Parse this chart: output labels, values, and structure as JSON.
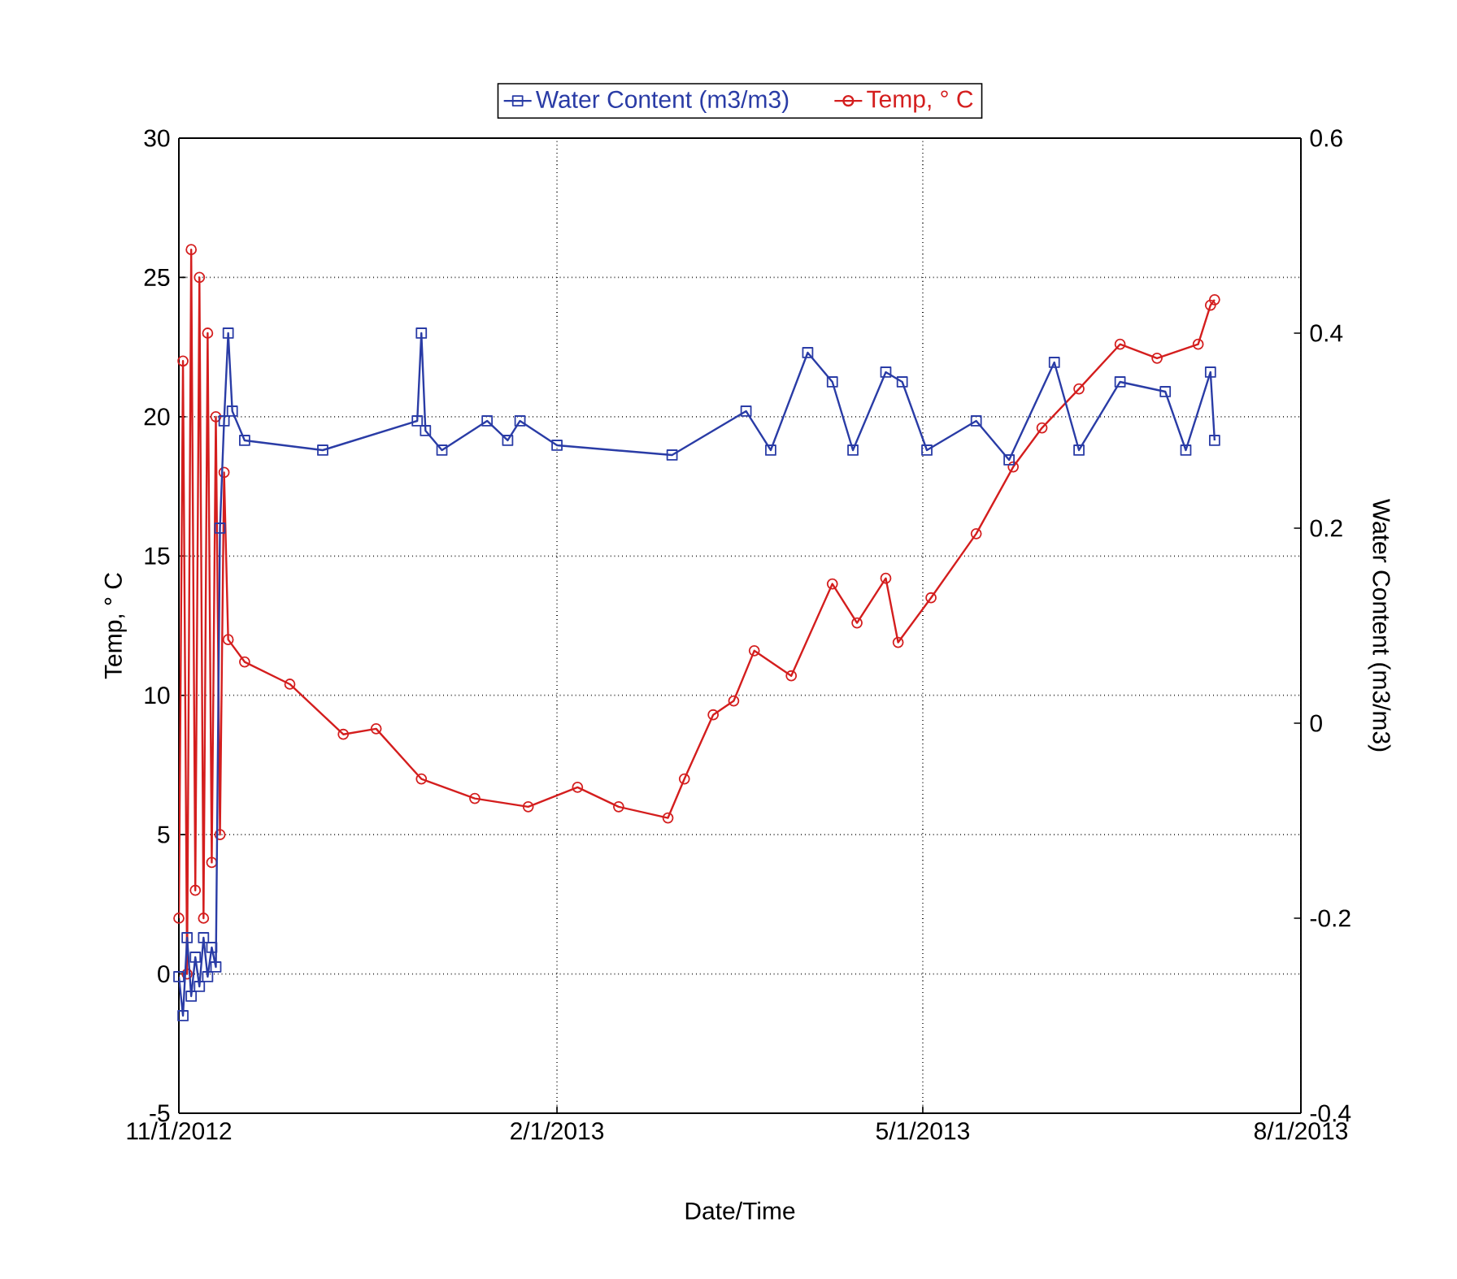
{
  "chart_data": {
    "type": "line",
    "xlabel": "Date/Time",
    "ylabel": "Temp, ° C",
    "y2label": "Water Content (m3/m3)",
    "xlim": [
      "2012-11-01",
      "2013-08-01"
    ],
    "xticks": [
      {
        "value": "2012-11-01",
        "label": "11/1/2012"
      },
      {
        "value": "2013-02-01",
        "label": "2/1/2013"
      },
      {
        "value": "2013-05-01",
        "label": "5/1/2013"
      },
      {
        "value": "2013-08-01",
        "label": "8/1/2013"
      }
    ],
    "ylim": [
      -5,
      30
    ],
    "yticks": [
      -5,
      0,
      5,
      10,
      15,
      20,
      25,
      30
    ],
    "y2lim": [
      -0.4,
      0.6
    ],
    "y2ticks": [
      -0.4,
      -0.2,
      0,
      0.2,
      0.4,
      0.6
    ],
    "grid": true,
    "legend": "top",
    "series": [
      {
        "name": "Water Content (m3/m3)",
        "color": "#2a3ca6",
        "axis": "y2",
        "marker": "square",
        "x": [
          "2012-11-01",
          "2012-11-02",
          "2012-11-03",
          "2012-11-04",
          "2012-11-05",
          "2012-11-06",
          "2012-11-07",
          "2012-11-08",
          "2012-11-09",
          "2012-11-10",
          "2012-11-11",
          "2012-11-12",
          "2012-11-13",
          "2012-11-14",
          "2012-11-17",
          "2012-12-06",
          "2012-12-29",
          "2012-12-30",
          "2012-12-31",
          "2013-01-04",
          "2013-01-15",
          "2013-01-20",
          "2013-01-23",
          "2013-02-01",
          "2013-03-01",
          "2013-03-19",
          "2013-03-25",
          "2013-04-03",
          "2013-04-09",
          "2013-04-14",
          "2013-04-22",
          "2013-04-26",
          "2013-05-02",
          "2013-05-14",
          "2013-05-22",
          "2013-06-02",
          "2013-06-08",
          "2013-06-18",
          "2013-06-29",
          "2013-07-04",
          "2013-07-10",
          "2013-07-11"
        ],
        "values": [
          -0.26,
          -0.3,
          -0.22,
          -0.28,
          -0.24,
          -0.27,
          -0.22,
          -0.26,
          -0.23,
          -0.25,
          0.2,
          0.31,
          0.4,
          0.32,
          0.29,
          0.28,
          0.31,
          0.4,
          0.3,
          0.28,
          0.31,
          0.29,
          0.31,
          0.285,
          0.275,
          0.32,
          0.28,
          0.38,
          0.35,
          0.28,
          0.36,
          0.35,
          0.28,
          0.31,
          0.27,
          0.37,
          0.28,
          0.35,
          0.34,
          0.28,
          0.36,
          0.29
        ]
      },
      {
        "name": "Temp, ° C",
        "color": "#d41e1e",
        "marker": "circle",
        "x": [
          "2012-11-01",
          "2012-11-02",
          "2012-11-03",
          "2012-11-04",
          "2012-11-05",
          "2012-11-06",
          "2012-11-07",
          "2012-11-08",
          "2012-11-09",
          "2012-11-10",
          "2012-11-11",
          "2012-11-12",
          "2012-11-13",
          "2012-11-17",
          "2012-11-28",
          "2012-12-11",
          "2012-12-19",
          "2012-12-30",
          "2013-01-12",
          "2013-01-25",
          "2013-02-06",
          "2013-02-16",
          "2013-02-28",
          "2013-03-04",
          "2013-03-11",
          "2013-03-16",
          "2013-03-21",
          "2013-03-30",
          "2013-04-09",
          "2013-04-15",
          "2013-04-22",
          "2013-04-25",
          "2013-05-03",
          "2013-05-14",
          "2013-05-23",
          "2013-05-30",
          "2013-06-08",
          "2013-06-18",
          "2013-06-27",
          "2013-07-07",
          "2013-07-10",
          "2013-07-11"
        ],
        "values": [
          2,
          22,
          0,
          26,
          3,
          25,
          2,
          23,
          4,
          20,
          5,
          18,
          12,
          11.2,
          10.4,
          8.6,
          8.8,
          7.0,
          6.3,
          6.0,
          6.7,
          6.0,
          5.6,
          7.0,
          9.3,
          9.8,
          11.6,
          10.7,
          14.0,
          12.6,
          14.2,
          11.9,
          13.5,
          15.8,
          18.2,
          19.6,
          21.0,
          22.6,
          22.1,
          22.6,
          24.0,
          24.2
        ]
      }
    ]
  }
}
